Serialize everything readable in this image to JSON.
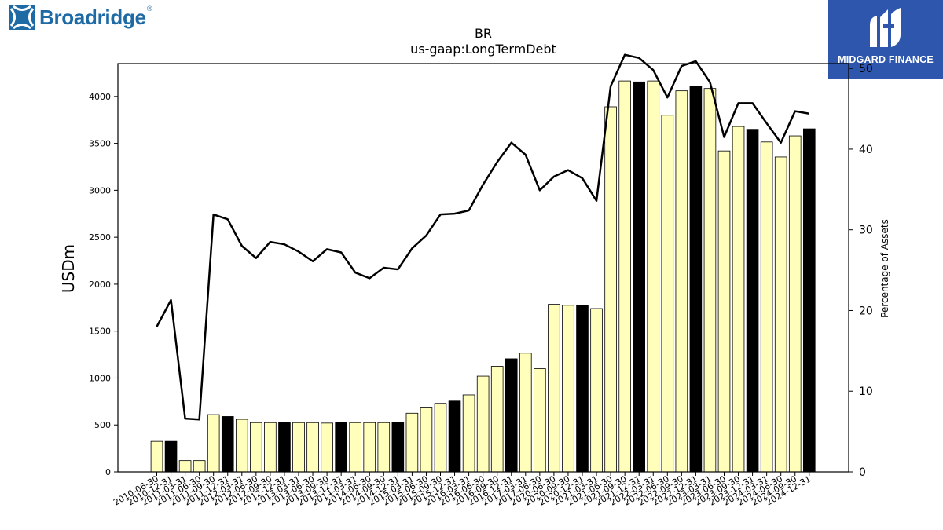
{
  "brand": {
    "name": "Broadridge",
    "registered": "®"
  },
  "watermark": {
    "text": "MIDGARD FINANCE"
  },
  "chart_data": {
    "type": "bar",
    "title": "BR",
    "subtitle": "us-gaap:LongTermDebt",
    "ylabel": "USDm",
    "y2label": "Percentage of Assets",
    "ylim": [
      0,
      4350
    ],
    "y2lim": [
      0,
      50.6
    ],
    "yticks": [
      0,
      500,
      1000,
      1500,
      2000,
      2500,
      3000,
      3500,
      4000
    ],
    "y2ticks": [
      0,
      10,
      20,
      30,
      40,
      50
    ],
    "grid": false,
    "colors": {
      "bar": "#ffffbb",
      "bar_fy": "#000000",
      "line": "#000000"
    },
    "categories": [
      "2010-06-30",
      "2010-12-31",
      "2011-03-31",
      "2011-06-30",
      "2011-09-30",
      "2011-12-31",
      "2012-03-31",
      "2012-06-30",
      "2012-09-30",
      "2012-12-31",
      "2013-03-31",
      "2013-06-30",
      "2013-09-30",
      "2013-12-31",
      "2014-03-31",
      "2014-06-30",
      "2014-09-30",
      "2014-12-31",
      "2015-03-31",
      "2015-06-30",
      "2015-09-30",
      "2015-12-31",
      "2016-03-31",
      "2016-06-30",
      "2016-09-30",
      "2016-12-31",
      "2017-03-31",
      "2017-06-30",
      "2020-06-30",
      "2020-09-30",
      "2020-12-31",
      "2021-03-31",
      "2021-06-30",
      "2021-09-30",
      "2021-12-31",
      "2022-03-31",
      "2022-06-30",
      "2022-09-30",
      "2022-12-31",
      "2023-03-31",
      "2023-06-30",
      "2023-09-30",
      "2023-12-31",
      "2024-03-31",
      "2024-06-30",
      "2024-09-30",
      "2024-12-31"
    ],
    "series": [
      {
        "values": [
          325,
          325,
          120,
          120,
          610,
          590,
          560,
          525,
          525,
          525,
          525,
          525,
          520,
          525,
          525,
          525,
          525,
          525,
          625,
          690,
          730,
          755,
          820,
          1020,
          1125,
          1205,
          1265,
          1100,
          1785,
          1775,
          1775,
          1740,
          3890,
          4165,
          4155,
          4165,
          3800,
          4060,
          4105,
          4085,
          3420,
          3680,
          3650,
          3515,
          3355,
          3580,
          3655
        ],
        "fiscal_year_end": [
          false,
          true,
          false,
          false,
          false,
          true,
          false,
          false,
          false,
          true,
          false,
          false,
          false,
          true,
          false,
          false,
          false,
          true,
          false,
          false,
          false,
          true,
          false,
          false,
          false,
          true,
          false,
          false,
          false,
          false,
          true,
          false,
          false,
          false,
          true,
          false,
          false,
          false,
          true,
          false,
          false,
          false,
          true,
          false,
          false,
          false,
          true
        ]
      },
      {
        "axis": "right",
        "values": [
          18.0,
          21.3,
          6.6,
          6.5,
          31.9,
          31.3,
          28.0,
          26.5,
          28.5,
          28.2,
          27.3,
          26.1,
          27.6,
          27.2,
          24.7,
          24.0,
          25.3,
          25.1,
          27.7,
          29.3,
          31.9,
          32.0,
          32.4,
          35.6,
          38.4,
          40.8,
          39.3,
          34.9,
          36.6,
          37.4,
          36.4,
          33.6,
          47.8,
          51.7,
          51.3,
          49.8,
          46.4,
          50.3,
          50.9,
          48.3,
          41.5,
          45.7,
          45.7,
          43.2,
          40.8,
          44.7,
          44.4
        ]
      }
    ]
  }
}
